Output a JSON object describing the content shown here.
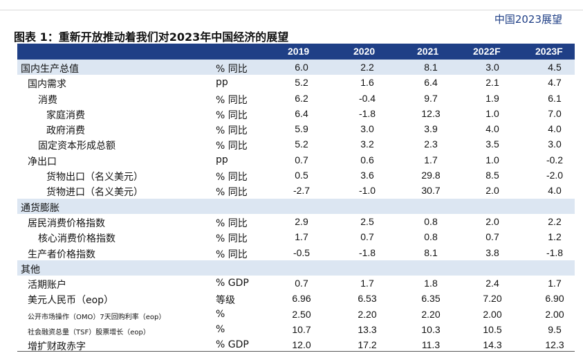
{
  "header": {
    "brand": "中国2023展望"
  },
  "figure": {
    "title": "图表 1：重新开放推动着我们对2023年中国经济的展望"
  },
  "table": {
    "years": [
      "2019",
      "2020",
      "2021",
      "2022F",
      "2023F"
    ],
    "rows": [
      {
        "label": "国内生产总值",
        "unit": "% 同比",
        "values": [
          "6.0",
          "2.2",
          "8.1",
          "3.0",
          "4.5"
        ],
        "section": true,
        "indent": 0
      },
      {
        "label": "国内需求",
        "unit": "pp",
        "values": [
          "5.2",
          "1.6",
          "6.4",
          "2.1",
          "4.7"
        ],
        "indent": 1
      },
      {
        "label": "消费",
        "unit": "% 同比",
        "values": [
          "6.2",
          "-0.4",
          "9.7",
          "1.9",
          "6.1"
        ],
        "indent": 2
      },
      {
        "label": "家庭消费",
        "unit": "% 同比",
        "values": [
          "6.4",
          "-1.8",
          "12.3",
          "1.0",
          "7.0"
        ],
        "indent": 3
      },
      {
        "label": "政府消费",
        "unit": "% 同比",
        "values": [
          "5.9",
          "3.0",
          "3.9",
          "4.0",
          "4.0"
        ],
        "indent": 3
      },
      {
        "label": "固定资本形成总额",
        "unit": "% 同比",
        "values": [
          "5.2",
          "3.2",
          "2.3",
          "3.5",
          "3.0"
        ],
        "indent": 2
      },
      {
        "label": "净出口",
        "unit": "pp",
        "values": [
          "0.7",
          "0.6",
          "1.7",
          "1.0",
          "-0.2"
        ],
        "indent": 1
      },
      {
        "label": "货物出口（名义美元）",
        "unit": "% 同比",
        "values": [
          "0.5",
          "3.6",
          "29.8",
          "8.5",
          "-2.0"
        ],
        "indent": 3
      },
      {
        "label": "货物进口（名义美元）",
        "unit": "% 同比",
        "values": [
          "-2.7",
          "-1.0",
          "30.7",
          "2.0",
          "4.0"
        ],
        "indent": 3
      },
      {
        "label": "通货膨胀",
        "unit": "",
        "values": [
          "",
          "",
          "",
          "",
          ""
        ],
        "section": true,
        "indent": 0
      },
      {
        "label": "居民消费价格指数",
        "unit": "% 同比",
        "values": [
          "2.9",
          "2.5",
          "0.8",
          "2.0",
          "2.2"
        ],
        "indent": 1
      },
      {
        "label": "核心消费价格指数",
        "unit": "% 同比",
        "values": [
          "1.7",
          "0.7",
          "0.8",
          "0.7",
          "1.2"
        ],
        "indent": 2
      },
      {
        "label": "生产者价格指数",
        "unit": "% 同比",
        "values": [
          "-0.5",
          "-1.8",
          "8.1",
          "3.8",
          "-1.8"
        ],
        "indent": 1
      },
      {
        "label": "其他",
        "unit": "",
        "values": [
          "",
          "",
          "",
          "",
          ""
        ],
        "section": true,
        "indent": 0
      },
      {
        "label": "活期账户",
        "unit": "% GDP",
        "values": [
          "0.7",
          "1.7",
          "1.8",
          "2.4",
          "1.7"
        ],
        "indent": 1
      },
      {
        "label": "美元人民币（eop）",
        "unit": "等级",
        "values": [
          "6.96",
          "6.53",
          "6.35",
          "7.20",
          "6.90"
        ],
        "indent": 1
      },
      {
        "label": "公开市场操作（OMO）7天回购利率（eop）",
        "unit": "%",
        "values": [
          "2.50",
          "2.20",
          "2.20",
          "2.00",
          "2.00"
        ],
        "indent": 1,
        "small": true
      },
      {
        "label": "社会融资总量（TSF）股票增长（eop）",
        "unit": "%",
        "values": [
          "10.7",
          "13.3",
          "10.3",
          "10.5",
          "9.5"
        ],
        "indent": 1,
        "small": true
      },
      {
        "label": "增扩财政赤字",
        "unit": "% GDP",
        "values": [
          "12.0",
          "17.2",
          "11.3",
          "14.3",
          "12.3"
        ],
        "indent": 1
      }
    ]
  }
}
